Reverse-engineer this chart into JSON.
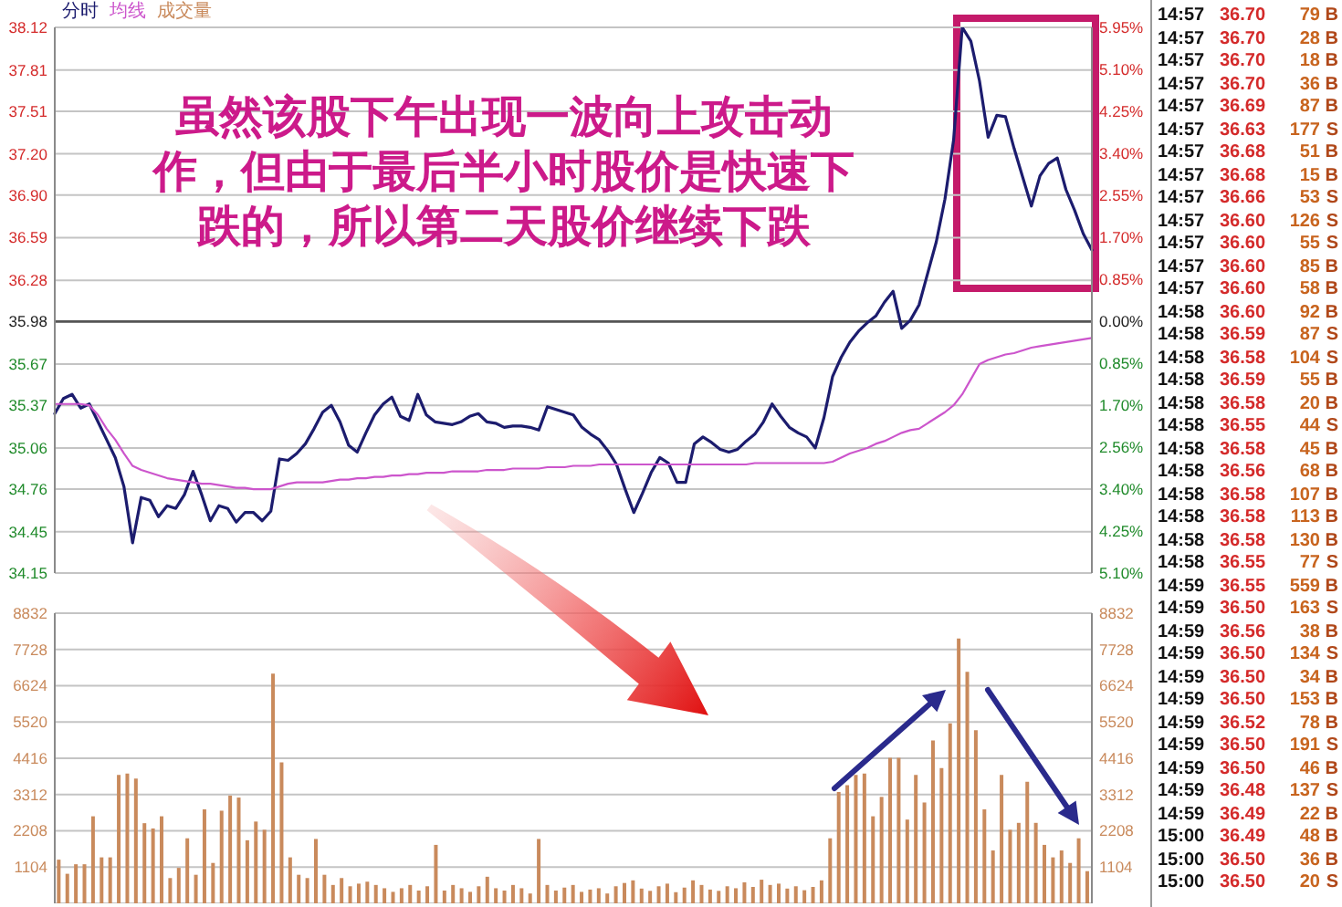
{
  "chart_data": [
    {
      "type": "line",
      "legend": "top left",
      "grid": "y",
      "categories": [
        null,
        null,
        null,
        null,
        null,
        null,
        null,
        null,
        null,
        null,
        null,
        null,
        null,
        null,
        null,
        null,
        null,
        null,
        null,
        null,
        null,
        null,
        null,
        null,
        null,
        null,
        null,
        null,
        null,
        null,
        null,
        null,
        null,
        null,
        null,
        null,
        null,
        null,
        null,
        null,
        null,
        null,
        null,
        null,
        null,
        null,
        null,
        null,
        null,
        null,
        null,
        null,
        null,
        null,
        null,
        null,
        null,
        null,
        null,
        null,
        null,
        null,
        null,
        null,
        null,
        null,
        null,
        null,
        null,
        null,
        null,
        null,
        null,
        null,
        null,
        null,
        null,
        null,
        null,
        null,
        null,
        null,
        null,
        null,
        null,
        null,
        null,
        null,
        null,
        null,
        null,
        null,
        null,
        null,
        null,
        null,
        null,
        null,
        null,
        null,
        null,
        null,
        null,
        null,
        null,
        null,
        null,
        null,
        null,
        null,
        null,
        null,
        null,
        null,
        null,
        null,
        null,
        null,
        null,
        null,
        null
      ],
      "series": [
        {
          "name": "分时",
          "color": "#1c1c6e",
          "values": [
            35.31,
            35.42,
            35.45,
            35.35,
            35.38,
            35.25,
            35.12,
            34.99,
            34.78,
            34.37,
            34.7,
            34.68,
            34.56,
            34.64,
            34.62,
            34.72,
            34.89,
            34.72,
            34.53,
            34.64,
            34.62,
            34.52,
            34.59,
            34.59,
            34.53,
            34.6,
            34.98,
            34.97,
            35.02,
            35.09,
            35.2,
            35.32,
            35.37,
            35.25,
            35.08,
            35.03,
            35.17,
            35.3,
            35.38,
            35.43,
            35.29,
            35.26,
            35.45,
            35.3,
            35.25,
            35.24,
            35.23,
            35.25,
            35.29,
            35.31,
            35.25,
            35.24,
            35.21,
            35.22,
            35.22,
            35.21,
            35.19,
            35.36,
            35.34,
            35.32,
            35.3,
            35.21,
            35.16,
            35.12,
            35.04,
            34.94,
            34.76,
            34.59,
            34.73,
            34.88,
            34.99,
            34.95,
            34.81,
            34.81,
            35.09,
            35.14,
            35.1,
            35.05,
            35.03,
            35.05,
            35.11,
            35.16,
            35.25,
            35.38,
            35.29,
            35.21,
            35.17,
            35.14,
            35.06,
            35.28,
            35.58,
            35.72,
            35.83,
            35.91,
            35.97,
            36.02,
            36.12,
            36.2,
            35.93,
            35.99,
            36.1,
            36.33,
            36.56,
            36.87,
            37.3,
            38.12,
            38.02,
            37.73,
            37.32,
            37.48,
            37.47,
            37.24,
            37.03,
            36.82,
            37.04,
            37.13,
            37.17,
            36.94,
            36.79,
            36.62,
            36.5
          ]
        },
        {
          "name": "均线",
          "color": "#cc55cc",
          "values": [
            35.38,
            35.38,
            35.38,
            35.38,
            35.37,
            35.3,
            35.2,
            35.12,
            35.02,
            34.93,
            34.9,
            34.88,
            34.86,
            34.84,
            34.83,
            34.82,
            34.81,
            34.8,
            34.8,
            34.79,
            34.78,
            34.77,
            34.77,
            34.76,
            34.76,
            34.76,
            34.78,
            34.8,
            34.81,
            34.81,
            34.81,
            34.81,
            34.82,
            34.83,
            34.83,
            34.84,
            34.84,
            34.85,
            34.85,
            34.86,
            34.86,
            34.87,
            34.87,
            34.88,
            34.88,
            34.88,
            34.89,
            34.89,
            34.89,
            34.89,
            34.9,
            34.9,
            34.9,
            34.91,
            34.91,
            34.91,
            34.91,
            34.92,
            34.92,
            34.92,
            34.93,
            34.93,
            34.93,
            34.94,
            34.94,
            34.94,
            34.94,
            34.94,
            34.94,
            34.94,
            34.94,
            34.94,
            34.94,
            34.94,
            34.94,
            34.94,
            34.94,
            34.94,
            34.94,
            34.94,
            34.94,
            34.95,
            34.95,
            34.95,
            34.95,
            34.95,
            34.95,
            34.95,
            34.95,
            34.95,
            34.96,
            34.99,
            35.02,
            35.04,
            35.06,
            35.09,
            35.11,
            35.14,
            35.17,
            35.19,
            35.2,
            35.24,
            35.28,
            35.32,
            35.37,
            35.45,
            35.56,
            35.67,
            35.7,
            35.72,
            35.74,
            35.75,
            35.77,
            35.79,
            35.8,
            35.81,
            35.82,
            35.83,
            35.84,
            35.85,
            35.86
          ]
        }
      ],
      "ylim": [
        34.15,
        38.12
      ],
      "yticks": [
        34.15,
        34.45,
        34.76,
        35.06,
        35.37,
        35.67,
        35.98,
        36.28,
        36.59,
        {
          "value": 36.9,
          "label": "36.90"
        },
        {
          "value": 37.2,
          "label": "37.20"
        },
        37.51,
        37.81,
        38.12
      ],
      "y2lim": [
        -5.1,
        5.95
      ],
      "y2ticks": [
        {
          "value": -5.1,
          "label": "5.10%"
        },
        {
          "value": -4.25,
          "label": "4.25%"
        },
        {
          "value": -3.4,
          "label": "3.40%"
        },
        {
          "value": -2.56,
          "label": "2.56%"
        },
        {
          "value": -1.7,
          "label": "1.70%"
        },
        {
          "value": -0.85,
          "label": "0.85%"
        },
        {
          "value": 0,
          "label": "0.00%"
        },
        {
          "value": 0.85,
          "label": "0.85%"
        },
        {
          "value": 1.7,
          "label": "1.70%"
        },
        {
          "value": 2.55,
          "label": "2.55%"
        },
        {
          "value": 3.4,
          "label": "3.40%"
        },
        {
          "value": 4.25,
          "label": "4.25%"
        },
        {
          "value": 5.1,
          "label": "5.10%"
        },
        {
          "value": 5.95,
          "label": "5.95%"
        }
      ],
      "ref_lines": [
        {
          "axis": "y",
          "value": 35.98,
          "color": "#555555"
        }
      ],
      "annotations": [
        "虽然该股下午出现一波向上攻击动作，但由于最后半小时股价是快速下跌的，所以第二天股价继续下跌",
        "14:57 36.70 79 B",
        "14:57 36.70 28 B",
        "14:57 36.70 18 B",
        "14:57 36.70 36 B",
        "14:57 36.69 87 B",
        "14:57 36.63 177 S",
        "14:57 36.68 51 B",
        "14:57 36.68 15 B",
        "14:57 36.66 53 S",
        "14:57 36.60 126 S",
        "14:57 36.60 55 S",
        "14:57 36.60 85 B",
        "14:57 36.60 58 B",
        "14:58 36.60 92 B",
        "14:58 36.59 87 S",
        "14:58 36.58 104 S",
        "14:58 36.59 55 B",
        "14:58 36.58 20 B",
        "14:58 36.55 44 S",
        "14:58 36.58 45 B",
        "14:58 36.56 68 B",
        "14:58 36.58 107 B",
        "14:58 36.58 113 B",
        "14:58 36.58 130 B",
        "14:58 36.55 77 S",
        "14:59 36.55 559 B",
        "14:59 36.50 163 S",
        "14:59 36.56 38 B",
        "14:59 36.50 134 S",
        "14:59 36.50 34 B",
        "14:59 36.50 153 B",
        "14:59 36.52 78 B",
        "14:59 36.50 191 S",
        "14:59 36.50 46 B",
        "14:59 36.48 137 S",
        "14:59 36.49 22 B",
        "15:00 36.49 48 B",
        "15:00 36.50 36 B",
        "15:00 36.50 20 S"
      ]
    },
    {
      "type": "bar",
      "legend": "top left",
      "grid": "y",
      "categories": [
        null,
        null,
        null,
        null,
        null,
        null,
        null,
        null,
        null,
        null,
        null,
        null,
        null,
        null,
        null,
        null,
        null,
        null,
        null,
        null,
        null,
        null,
        null,
        null,
        null,
        null,
        null,
        null,
        null,
        null,
        null,
        null,
        null,
        null,
        null,
        null,
        null,
        null,
        null,
        null,
        null,
        null,
        null,
        null,
        null,
        null,
        null,
        null,
        null,
        null,
        null,
        null,
        null,
        null,
        null,
        null,
        null,
        null,
        null,
        null,
        null,
        null,
        null,
        null,
        null,
        null,
        null,
        null,
        null,
        null,
        null,
        null,
        null,
        null,
        null,
        null,
        null,
        null,
        null,
        null,
        null,
        null,
        null,
        null,
        null,
        null,
        null,
        null,
        null,
        null,
        null,
        null,
        null,
        null,
        null,
        null,
        null,
        null,
        null,
        null,
        null,
        null,
        null,
        null,
        null,
        null,
        null,
        null,
        null,
        null,
        null,
        null,
        null,
        null,
        null,
        null,
        null,
        null,
        null,
        null,
        null
      ],
      "series": [
        {
          "name": "成交量",
          "color": "#c98a5c",
          "values": [
            1330,
            900,
            1190,
            1190,
            2650,
            1400,
            1400,
            3910,
            3950,
            3800,
            2440,
            2280,
            2650,
            770,
            1080,
            1980,
            870,
            2860,
            1230,
            2820,
            3280,
            3220,
            1920,
            2490,
            2240,
            6990,
            4290,
            1400,
            870,
            770,
            1960,
            870,
            560,
            770,
            520,
            600,
            660,
            560,
            460,
            350,
            460,
            560,
            390,
            520,
            1780,
            390,
            560,
            460,
            350,
            520,
            810,
            460,
            390,
            560,
            460,
            300,
            1960,
            560,
            390,
            480,
            560,
            350,
            420,
            460,
            300,
            520,
            620,
            700,
            450,
            380,
            520,
            600,
            340,
            480,
            700,
            560,
            420,
            380,
            520,
            460,
            640,
            500,
            720,
            560,
            600,
            450,
            520,
            400,
            500,
            700,
            1980,
            3390,
            3600,
            3910,
            3950,
            2650,
            3240,
            4430,
            4430,
            2550,
            3910,
            3070,
            4960,
            4120,
            5480,
            8060,
            7050,
            5270,
            2860,
            1610,
            3910,
            2240,
            2450,
            3700,
            2450,
            1780,
            1400,
            1610,
            1230,
            1980,
            980
          ]
        }
      ],
      "ylim": [
        0,
        8832
      ],
      "yticks": [
        1104,
        2208,
        3312,
        4416,
        5520,
        6624,
        7728,
        8832
      ],
      "y2lim": [
        0,
        8832
      ],
      "y2ticks": [
        1104,
        2208,
        3312,
        4416,
        5520,
        6624,
        7728,
        8832
      ]
    }
  ]
}
